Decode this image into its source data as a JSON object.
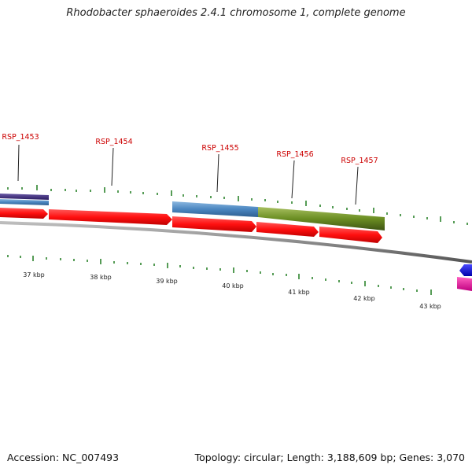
{
  "title": "Rhodobacter sphaeroides 2.4.1 chromosome 1, complete genome",
  "footer": {
    "accession": "Accession: NC_007493",
    "summary": "Topology: circular; Length: 3,188,609 bp; Genes: 3,070"
  },
  "colors": {
    "gene_label": "#cc0000",
    "cds_arrow": "#ff1a1a",
    "backbone": "#8a8a8a",
    "tick": "#1e7a1e",
    "feature_blue": "#4a86c0",
    "feature_green": "#6b8e23",
    "feature_purple": "#3a2a7a",
    "feature_navy": "#0000dd",
    "feature_magenta": "#e6169a"
  },
  "gene_labels": [
    "RSP_1453",
    "RSP_1454",
    "RSP_1455",
    "RSP_1456",
    "RSP_1457"
  ],
  "scale_labels": [
    "37 kbp",
    "38 kbp",
    "39 kbp",
    "40 kbp",
    "41 kbp",
    "42 kbp",
    "43 kbp"
  ]
}
